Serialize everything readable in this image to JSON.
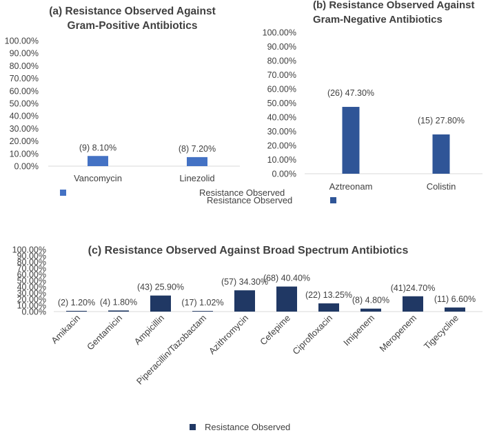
{
  "chart_data": [
    {
      "type": "bar",
      "title": [
        "(a) Resistance Observed Against",
        "Gram-Positive Antibiotics"
      ],
      "categories": [
        "Vancomycin",
        "Linezolid"
      ],
      "values": [
        8.1,
        7.2
      ],
      "data_labels": [
        "(9) 8.10%",
        "(8) 7.20%"
      ],
      "yticks": [
        "0.00%",
        "10.00%",
        "20.00%",
        "30.00%",
        "40.00%",
        "50.00%",
        "60.00%",
        "70.00%",
        "80.00%",
        "90.00%",
        "100.00%"
      ],
      "ylim": [
        0,
        100
      ],
      "series_name": "Resistance Observed",
      "color": "#4472c4",
      "legend_position": "bottom-left"
    },
    {
      "type": "bar",
      "title": [
        "(b) Resistance Observed Against",
        "Gram-Negative Antibiotics"
      ],
      "categories": [
        "Aztreonam",
        "Colistin"
      ],
      "values": [
        47.3,
        27.8
      ],
      "data_labels": [
        "(26) 47.30%",
        "(15) 27.80%"
      ],
      "yticks": [
        "0.00%",
        "10.00%",
        "20.00%",
        "30.00%",
        "40.00%",
        "50.00%",
        "60.00%",
        "70.00%",
        "80.00%",
        "90.00%",
        "100.00%"
      ],
      "ylim": [
        0,
        100
      ],
      "series_name": "Resistance Observed",
      "color": "#2f5597",
      "legend_position": "bottom"
    },
    {
      "type": "bar",
      "title": [
        "(c) Resistance Observed Against Broad Spectrum Antibiotics"
      ],
      "categories": [
        "Amikacin",
        "Gentamicin",
        "Ampicillin",
        "Piperacillin/Tazobactam",
        "Azithromycin",
        "Cefepime",
        "Ciprofloxacin",
        "Imipenem",
        "Meropenem",
        "Tigecycline"
      ],
      "values": [
        1.2,
        1.8,
        25.9,
        1.02,
        34.3,
        40.4,
        13.25,
        4.8,
        24.7,
        6.6
      ],
      "data_labels": [
        "(2) 1.20%",
        "(4) 1.80%",
        "(43) 25.90%",
        "(17) 1.02%",
        "(57) 34.30%",
        "(68) 40.40%",
        "(22) 13.25%",
        "(8) 4.80%",
        "(41)24.70%",
        "(11) 6.60%"
      ],
      "yticks": [
        "0.00%",
        "10.00%",
        "20.00%",
        "30.00%",
        "40.00%",
        "50.00%",
        "60.00%",
        "70.00%",
        "80.00%",
        "90.00%",
        "100.00%"
      ],
      "ylim": [
        0,
        100
      ],
      "series_name": "Resistance Observed",
      "color": "#203864",
      "legend_position": "bottom"
    }
  ]
}
